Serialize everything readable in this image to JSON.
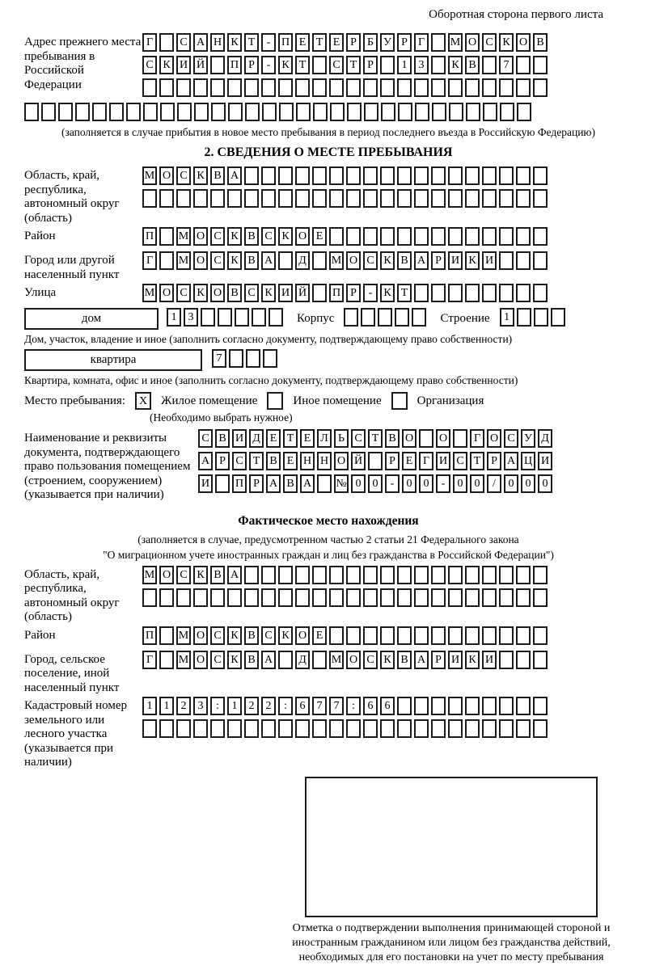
{
  "page": {
    "header_note": "Оборотная сторона первого листа"
  },
  "prev_address": {
    "label": "Адрес прежнего места пребывания в Российской Федерации",
    "rows": [
      "Г САНКТ-ПЕТЕРБУРГ МОСКОВ",
      "СКИЙ ПР-КТ СТР 13 КВ 7",
      ""
    ],
    "full_row": "",
    "note": "(заполняется в случае прибытия в новое место пребывания в период последнего въезда в Российскую Федерацию)"
  },
  "section2": {
    "title": "2. СВЕДЕНИЯ О МЕСТЕ ПРЕБЫВАНИЯ",
    "region": {
      "label": "Область, край, республика, автономный округ (область)",
      "rows": [
        "МОСКВА",
        ""
      ]
    },
    "district": {
      "label": "Район",
      "row": "П МОСКВСКОЕ"
    },
    "city": {
      "label": "Город или другой населенный пункт",
      "row": "Г МОСКВА Д МОСКВАРИКИ"
    },
    "street": {
      "label": "Улица",
      "row": "МОСКОВСКИЙ ПР-КТ"
    },
    "house": {
      "box_label": "дом",
      "house_cells": "13",
      "korpus_label": "Корпус",
      "korpus_cells": "",
      "stroenie_label": "Строение",
      "stroenie_cells": "1"
    },
    "house_note": "Дом, участок, владение и иное (заполнить согласно документу, подтверждающему право собственности)",
    "apartment": {
      "box_label": "квартира",
      "cells": "7"
    },
    "apartment_note": "Квартира, комната, офис и иное (заполнить согласно документу, подтверждающему право собственности)",
    "stay_type": {
      "label": "Место пребывания:",
      "options": [
        {
          "label": "Жилое помещение",
          "mark": "X"
        },
        {
          "label": "Иное помещение",
          "mark": ""
        },
        {
          "label": "Организация",
          "mark": ""
        }
      ],
      "note": "(Необходимо выбрать нужное)"
    },
    "document": {
      "label": "Наименование и реквизиты документа, подтверждающего право пользования помещением (строением, сооружением) (указывается при наличии)",
      "rows": [
        "СВИДЕТЕЛЬСТВО О ГОСУД",
        "АРСТВЕННОЙ РЕГИСТРАЦИ",
        "И ПРАВА №00-00-00/000"
      ]
    }
  },
  "actual_location": {
    "title": "Фактическое место нахождения",
    "note_line1": "(заполняется в случае, предусмотренном частью 2 статьи 21 Федерального закона",
    "note_line2": "\"О миграционном учете иностранных граждан и лиц без гражданства в Российской Федерации\")",
    "region": {
      "label": "Область, край, республика, автономный округ (область)",
      "rows": [
        "МОСКВА",
        ""
      ]
    },
    "district": {
      "label": "Район",
      "row": "П МОСКВСКОЕ"
    },
    "city": {
      "label": "Город, сельское поселение, иной населенный пункт",
      "row": "Г МОСКВА Д МОСКВАРИКИ"
    },
    "cadastral": {
      "label": "Кадастровый номер земельного или лесного участка (указывается при наличии)",
      "rows": [
        "1123:122:677:66",
        ""
      ]
    }
  },
  "confirmation": {
    "note": "Отметка о подтверждении выполнения принимающей стороной и иностранным гражданином или лицом без гражданства действий, необходимых для его постановки на учет по месту пребывания"
  }
}
